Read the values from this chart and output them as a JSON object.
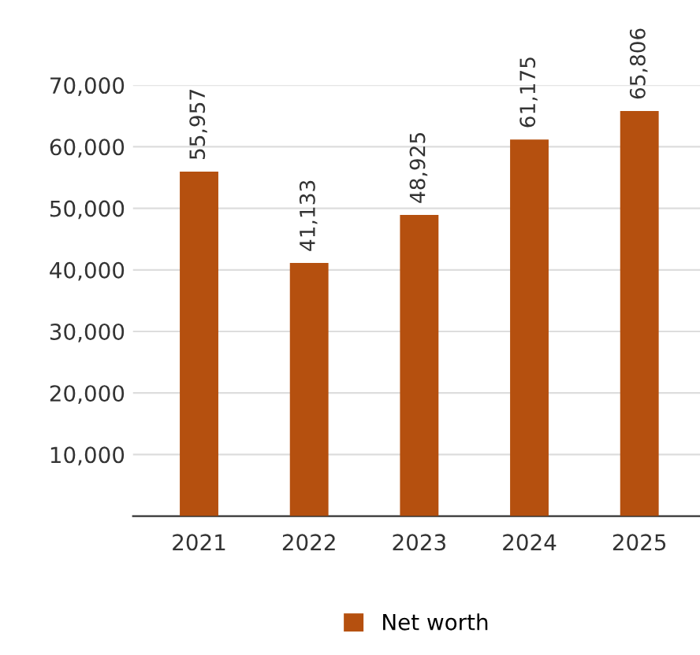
{
  "chart_data": {
    "type": "bar",
    "categories": [
      "2021",
      "2022",
      "2023",
      "2024",
      "2025"
    ],
    "series": [
      {
        "name": "Net worth",
        "color": "#b5500f",
        "values": [
          55957,
          41133,
          48925,
          61175,
          65806
        ]
      }
    ],
    "ylim": [
      0,
      70000
    ],
    "yticks": [
      {
        "value": 10000,
        "label": "10,000"
      },
      {
        "value": 20000,
        "label": "20,000"
      },
      {
        "value": 30000,
        "label": "30,000"
      },
      {
        "value": 40000,
        "label": "40,000"
      },
      {
        "value": 50000,
        "label": "50,000"
      },
      {
        "value": 60000,
        "label": "60,000"
      },
      {
        "value": 70000,
        "label": "70,000"
      }
    ],
    "value_labels": [
      "55,957",
      "41,133",
      "48,925",
      "61,175",
      "65,806"
    ],
    "grid": "y",
    "legend": "bottom"
  }
}
